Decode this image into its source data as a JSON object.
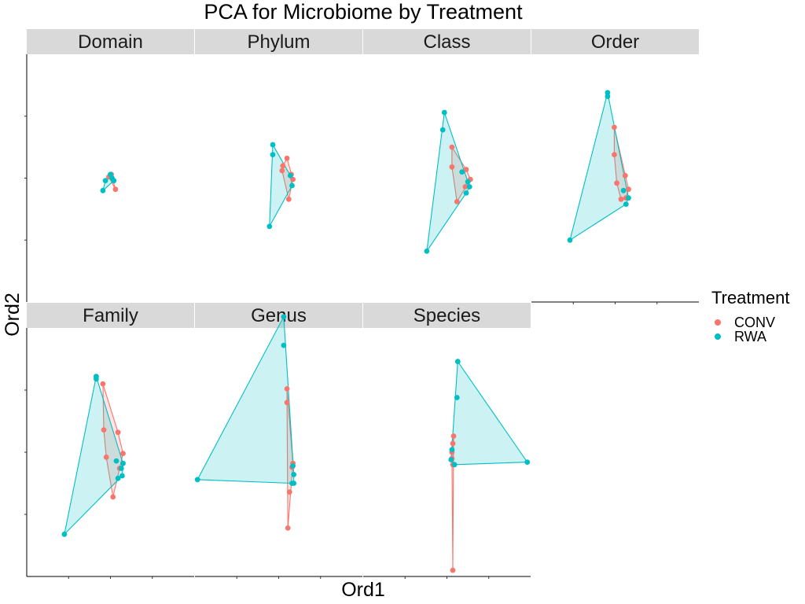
{
  "chart_data": {
    "type": "scatter",
    "title": "PCA for Microbiome by Treatment",
    "xlabel": "Ord1",
    "ylabel": "Ord2",
    "xlim": [
      -1,
      1
    ],
    "ylim": [
      -1,
      1
    ],
    "legend": {
      "title": "Treatment",
      "position": "right",
      "entries": [
        {
          "name": "CONV",
          "color": "#F8766D"
        },
        {
          "name": "RWA",
          "color": "#00BFC4"
        }
      ]
    },
    "hulls": true,
    "panels": [
      {
        "name": "Domain",
        "series": [
          {
            "name": "CONV",
            "points": [
              [
                0.0,
                0.02
              ],
              [
                0.01,
                0.03
              ],
              [
                -0.02,
                0.01
              ],
              [
                0.06,
                -0.09
              ]
            ]
          },
          {
            "name": "RWA",
            "points": [
              [
                0.0,
                0.03
              ],
              [
                0.02,
                0.0
              ],
              [
                -0.06,
                -0.02
              ],
              [
                0.04,
                -0.02
              ],
              [
                -0.09,
                -0.1
              ]
            ]
          }
        ]
      },
      {
        "name": "Phylum",
        "series": [
          {
            "name": "CONV",
            "points": [
              [
                0.1,
                0.16
              ],
              [
                0.05,
                0.1
              ],
              [
                0.04,
                0.06
              ],
              [
                0.15,
                0.03
              ],
              [
                0.17,
                -0.01
              ],
              [
                0.12,
                -0.17
              ]
            ]
          },
          {
            "name": "RWA",
            "points": [
              [
                -0.07,
                0.27
              ],
              [
                -0.07,
                0.19
              ],
              [
                0.14,
                0.02
              ],
              [
                0.16,
                -0.06
              ],
              [
                -0.11,
                -0.39
              ]
            ]
          }
        ]
      },
      {
        "name": "Class",
        "series": [
          {
            "name": "CONV",
            "points": [
              [
                0.06,
                0.25
              ],
              [
                0.06,
                0.09
              ],
              [
                0.23,
                0.07
              ],
              [
                0.28,
                -0.01
              ],
              [
                0.22,
                -0.07
              ],
              [
                0.12,
                -0.19
              ]
            ]
          },
          {
            "name": "RWA",
            "points": [
              [
                -0.03,
                0.53
              ],
              [
                -0.05,
                0.39
              ],
              [
                0.18,
                0.05
              ],
              [
                0.25,
                -0.03
              ],
              [
                0.27,
                -0.07
              ],
              [
                0.23,
                -0.12
              ],
              [
                -0.24,
                -0.59
              ]
            ]
          }
        ]
      },
      {
        "name": "Order",
        "series": [
          {
            "name": "CONV",
            "points": [
              [
                -0.01,
                0.41
              ],
              [
                -0.01,
                0.19
              ],
              [
                0.12,
                0.02
              ],
              [
                0.02,
                -0.04
              ],
              [
                0.16,
                -0.09
              ],
              [
                0.07,
                -0.17
              ],
              [
                0.13,
                -0.16
              ]
            ]
          },
          {
            "name": "RWA",
            "points": [
              [
                -0.09,
                0.69
              ],
              [
                -0.09,
                0.66
              ],
              [
                0.1,
                -0.1
              ],
              [
                0.16,
                -0.16
              ],
              [
                0.13,
                -0.21
              ],
              [
                -0.54,
                -0.5
              ]
            ]
          }
        ]
      },
      {
        "name": "Family",
        "series": [
          {
            "name": "CONV",
            "points": [
              [
                -0.09,
                0.55
              ],
              [
                -0.08,
                0.18
              ],
              [
                0.09,
                0.16
              ],
              [
                -0.05,
                -0.04
              ],
              [
                0.15,
                -0.01
              ],
              [
                0.11,
                -0.13
              ],
              [
                0.03,
                -0.36
              ]
            ]
          },
          {
            "name": "RWA",
            "points": [
              [
                -0.17,
                0.61
              ],
              [
                -0.17,
                0.59
              ],
              [
                0.07,
                -0.07
              ],
              [
                0.15,
                -0.09
              ],
              [
                0.13,
                -0.13
              ],
              [
                0.14,
                -0.19
              ],
              [
                0.09,
                -0.21
              ],
              [
                -0.55,
                -0.66
              ]
            ]
          }
        ]
      },
      {
        "name": "Genus",
        "series": [
          {
            "name": "CONV",
            "points": [
              [
                0.1,
                0.51
              ],
              [
                0.1,
                0.4
              ],
              [
                0.17,
                -0.09
              ],
              [
                0.16,
                -0.12
              ],
              [
                0.13,
                -0.32
              ],
              [
                0.11,
                -0.61
              ]
            ]
          },
          {
            "name": "RWA",
            "points": [
              [
                0.06,
                1.09
              ],
              [
                0.06,
                0.86
              ],
              [
                0.17,
                -0.11
              ],
              [
                0.18,
                -0.18
              ],
              [
                0.16,
                -0.25
              ],
              [
                0.18,
                -0.25
              ],
              [
                -0.97,
                -0.22
              ]
            ]
          }
        ]
      },
      {
        "name": "Species",
        "series": [
          {
            "name": "CONV",
            "points": [
              [
                0.08,
                0.13
              ],
              [
                0.07,
                0.07
              ],
              [
                0.06,
                0.0
              ],
              [
                0.06,
                -0.05
              ],
              [
                0.07,
                -0.1
              ],
              [
                0.07,
                -0.95
              ]
            ]
          },
          {
            "name": "RWA",
            "points": [
              [
                0.13,
                0.73
              ],
              [
                0.12,
                0.44
              ],
              [
                0.06,
                0.02
              ],
              [
                0.05,
                -0.06
              ],
              [
                0.09,
                -0.1
              ],
              [
                0.96,
                -0.08
              ]
            ]
          }
        ]
      }
    ]
  }
}
